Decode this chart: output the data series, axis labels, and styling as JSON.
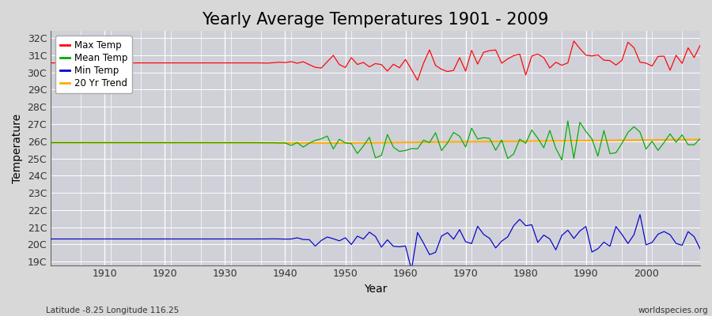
{
  "title": "Yearly Average Temperatures 1901 - 2009",
  "xlabel": "Year",
  "ylabel": "Temperature",
  "x_start": 1901,
  "x_end": 2009,
  "yticks": [
    "19C",
    "20C",
    "21C",
    "22C",
    "23C",
    "24C",
    "25C",
    "26C",
    "27C",
    "28C",
    "29C",
    "30C",
    "31C",
    "32C"
  ],
  "yvalues": [
    19,
    20,
    21,
    22,
    23,
    24,
    25,
    26,
    27,
    28,
    29,
    30,
    31,
    32
  ],
  "ylim": [
    18.8,
    32.4
  ],
  "xlim": [
    1901,
    2009
  ],
  "xticks": [
    1910,
    1920,
    1930,
    1940,
    1950,
    1960,
    1970,
    1980,
    1990,
    2000
  ],
  "fig_bg_color": "#d8d8d8",
  "plot_bg_color": "#d0d0d8",
  "grid_color": "#ffffff",
  "max_temp_color": "#ff0000",
  "mean_temp_color": "#00aa00",
  "min_temp_color": "#0000cc",
  "trend_color": "#ffaa00",
  "legend_labels": [
    "Max Temp",
    "Mean Temp",
    "Min Temp",
    "20 Yr Trend"
  ],
  "subtitle": "Latitude -8.25 Longitude 116.25",
  "watermark": "worldspecies.org",
  "title_fontsize": 15,
  "axis_label_fontsize": 10,
  "tick_fontsize": 9
}
